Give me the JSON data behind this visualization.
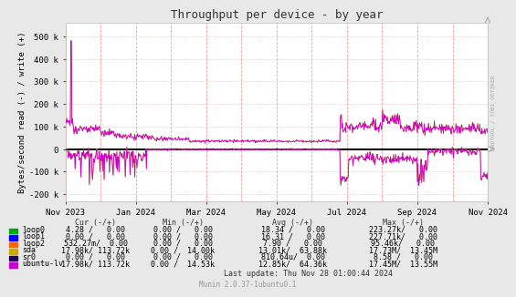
{
  "title": "Throughput per device - by year",
  "ylabel": "Bytes/second read (-) / write (+)",
  "background_color": "#e8e8e8",
  "plot_bg_color": "#ffffff",
  "grid_color": "#ddaaaa",
  "ymin": -230000,
  "ymax": 560000,
  "yticks": [
    -200000,
    -100000,
    0,
    100000,
    200000,
    300000,
    400000,
    500000
  ],
  "ytick_labels": [
    "-200 k",
    "-100 k",
    "0",
    "100 k",
    "200 k",
    "300 k",
    "400 k",
    "500 k"
  ],
  "xtick_labels": [
    "Nov 2023",
    "Jan 2024",
    "Mar 2024",
    "May 2024",
    "Jul 2024",
    "Sep 2024",
    "Nov 2024"
  ],
  "zero_line_color": "#000000",
  "vertical_line_color": "#ff9999",
  "series_colors": {
    "loop0": "#00aa00",
    "loop1": "#0000ff",
    "loop2": "#ff6600",
    "sda": "#ccaa00",
    "sr0": "#220055",
    "ubuntu-lv": "#cc00cc"
  },
  "watermark": "RRDTOOL / TOBI OETIKER",
  "footer": "Munin 2.0.37-1ubuntu0.1",
  "last_update": "Last update: Thu Nov 28 01:00:44 2024",
  "names": [
    "loop0",
    "loop1",
    "loop2",
    "sda",
    "sr0",
    "ubuntu-lv"
  ],
  "cur_vals": [
    "4.28 /   0.00",
    "0.00 /   0.00",
    "532.27m/  0.00",
    "17.98k/ 113.72k",
    "0.00 /   0.00",
    "17.98k/ 113.72k"
  ],
  "min_vals": [
    "0.00 /   0.00",
    "0.00 /   0.00",
    "0.00 /   0.00",
    "0.00 /  14.00k",
    "0.00 /   0.00",
    "0.00 /  14.53k"
  ],
  "avg_vals": [
    "18.34 /   0.00",
    "16.31 /   0.00",
    "7.90 /   0.00",
    "13.01k/  63.88k",
    "810.64u/  0.00",
    "12.85k/  64.36k"
  ],
  "max_vals": [
    "223.27k/   0.00",
    "227.71k/   0.00",
    "95.46k/   0.00",
    "17.73M/  13.45M",
    "8.58 /   0.00",
    "17.45M/  13.55M"
  ]
}
